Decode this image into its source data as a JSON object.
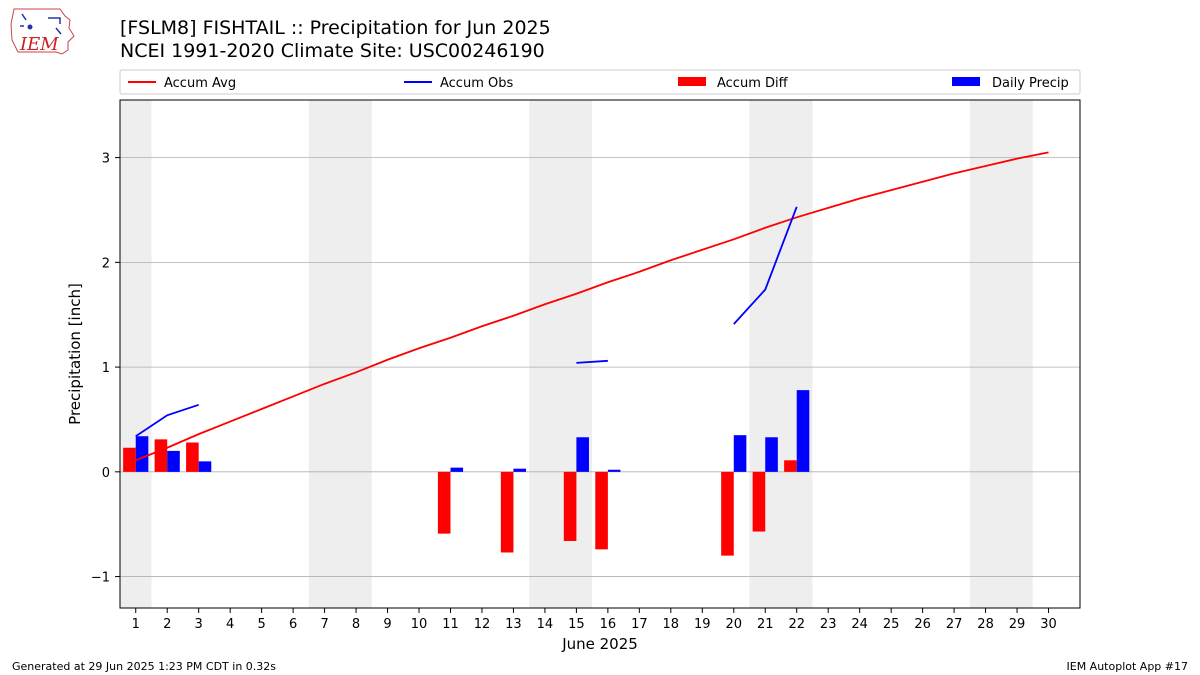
{
  "title": "[FSLM8] FISHTAIL :: Precipitation for Jun 2025",
  "subtitle": "NCEI 1991-2020 Climate Site: USC00246190",
  "footer_left": "Generated at 29 Jun 2025 1:23 PM CDT in 0.32s",
  "footer_right": "IEM Autoplot App #17",
  "logo_text": "IEM",
  "colors": {
    "avg": "#ff0000",
    "obs": "#0000ff",
    "diff": "#ff0000",
    "daily": "#0000ff",
    "weekend": "#eeeeee",
    "grid": "#b0b0b0"
  },
  "chart_data": {
    "type": "bar",
    "xlabel": "June 2025",
    "ylabel": "Precipitation [inch]",
    "xlim": [
      0.5,
      31
    ],
    "ylim": [
      -1.3,
      3.55
    ],
    "x_ticks": [
      1,
      2,
      3,
      4,
      5,
      6,
      7,
      8,
      9,
      10,
      11,
      12,
      13,
      14,
      15,
      16,
      17,
      18,
      19,
      20,
      21,
      22,
      23,
      24,
      25,
      26,
      27,
      28,
      29,
      30
    ],
    "y_ticks": [
      -1,
      0,
      1,
      2,
      3
    ],
    "y_tick_labels": [
      "−1",
      "0",
      "1",
      "2",
      "3"
    ],
    "grid": "horizontal",
    "legend_position": "top",
    "weekend_bands": [
      [
        0.5,
        1.5
      ],
      [
        6.5,
        8.5
      ],
      [
        13.5,
        15.5
      ],
      [
        20.5,
        22.5
      ],
      [
        27.5,
        29.5
      ]
    ],
    "legend": [
      {
        "label": "Accum Avg",
        "kind": "line",
        "color": "#ff0000"
      },
      {
        "label": "Accum Obs",
        "kind": "line",
        "color": "#0000ff"
      },
      {
        "label": "Accum Diff",
        "kind": "bar",
        "color": "#ff0000"
      },
      {
        "label": "Daily Precip",
        "kind": "bar",
        "color": "#0000ff"
      }
    ],
    "series": [
      {
        "name": "Accum Avg",
        "type": "line",
        "x": [
          1,
          2,
          3,
          4,
          5,
          6,
          7,
          8,
          9,
          10,
          11,
          12,
          13,
          14,
          15,
          16,
          17,
          18,
          19,
          20,
          21,
          22,
          23,
          24,
          25,
          26,
          27,
          28,
          29,
          30
        ],
        "values": [
          0.11,
          0.23,
          0.36,
          0.48,
          0.6,
          0.72,
          0.84,
          0.95,
          1.07,
          1.18,
          1.28,
          1.39,
          1.49,
          1.6,
          1.7,
          1.81,
          1.91,
          2.02,
          2.12,
          2.22,
          2.33,
          2.43,
          2.52,
          2.61,
          2.69,
          2.77,
          2.85,
          2.92,
          2.99,
          3.05
        ]
      },
      {
        "name": "Accum Obs",
        "type": "line",
        "segments": [
          {
            "x": [
              1,
              2,
              3
            ],
            "values": [
              0.34,
              0.54,
              0.64
            ]
          },
          {
            "x": [
              15,
              16
            ],
            "values": [
              1.04,
              1.06
            ]
          },
          {
            "x": [
              20,
              21,
              22
            ],
            "values": [
              1.41,
              1.74,
              2.53
            ]
          }
        ]
      },
      {
        "name": "Accum Diff",
        "type": "bar",
        "x": [
          1,
          2,
          3,
          11,
          13,
          15,
          16,
          20,
          21,
          22
        ],
        "values": [
          0.23,
          0.31,
          0.28,
          -0.59,
          -0.77,
          -0.66,
          -0.74,
          -0.8,
          -0.57,
          0.11
        ]
      },
      {
        "name": "Daily Precip",
        "type": "bar",
        "x": [
          1,
          2,
          3,
          11,
          13,
          15,
          16,
          20,
          21,
          22
        ],
        "values": [
          0.34,
          0.2,
          0.1,
          0.04,
          0.03,
          0.33,
          0.02,
          0.35,
          0.33,
          0.78
        ]
      }
    ]
  }
}
